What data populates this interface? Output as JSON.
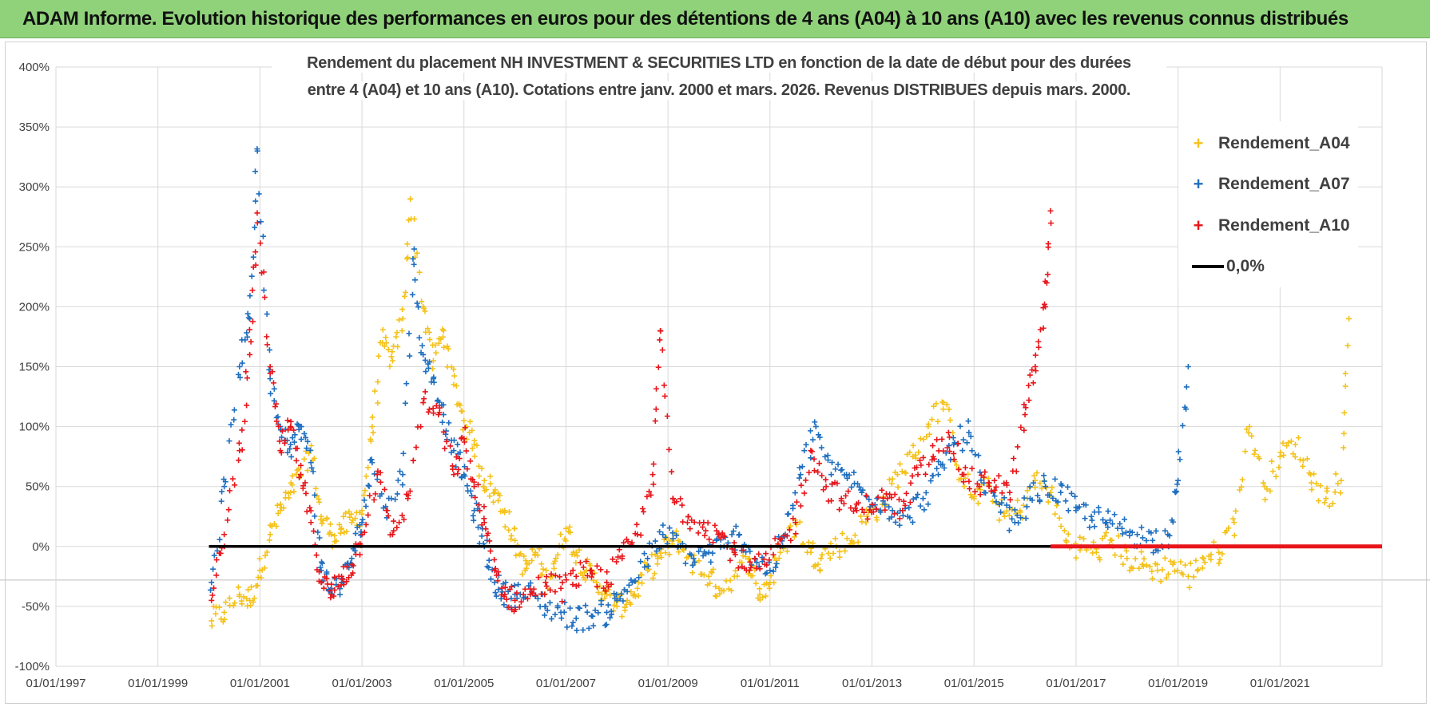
{
  "banner": {
    "title": "ADAM Informe. Evolution historique des performances en euros pour des détentions de 4 ans (A04) à 10 ans (A10) avec les revenus connus distribués"
  },
  "colors": {
    "banner_bg": "#8fd27a",
    "a04": "#f5c21b",
    "a07": "#1f6fc0",
    "a10": "#e8161b",
    "zero_line": "#000000",
    "grid": "#d9d9d9"
  },
  "chart_data": {
    "type": "scatter",
    "title_line1": "Rendement du placement NH INVESTMENT & SECURITIES LTD en fonction de la date de début pour des durées",
    "title_line2": "entre 4 (A04) et 10 ans (A10). Cotations entre janv. 2000 et mars. 2026. Revenus DISTRIBUES depuis mars. 2000.",
    "x_axis": {
      "type": "date",
      "ticks": [
        "01/01/1997",
        "01/01/1999",
        "01/01/2001",
        "01/01/2003",
        "01/01/2005",
        "01/01/2007",
        "01/01/2009",
        "01/01/2011",
        "01/01/2013",
        "01/01/2015",
        "01/01/2017",
        "01/01/2019",
        "01/01/2021"
      ],
      "range_years": [
        1997.0,
        2023.0
      ]
    },
    "y_axis": {
      "ticks": [
        "400%",
        "350%",
        "300%",
        "250%",
        "200%",
        "150%",
        "100%",
        "50%",
        "0%",
        "-50%",
        "-100%"
      ],
      "range": [
        -100,
        400
      ],
      "grid": true
    },
    "legend": [
      {
        "name": "Rendement_A04",
        "marker": "+"
      },
      {
        "name": "Rendement_A07",
        "marker": "+"
      },
      {
        "name": "Rendement_A10",
        "marker": "+"
      },
      {
        "name": "0,0%",
        "marker": "line"
      }
    ],
    "series": [
      {
        "name": "Rendement_A04",
        "x": [
          2000.05,
          2000.3,
          2000.6,
          2000.8,
          2001.0,
          2001.2,
          2001.4,
          2001.6,
          2001.8,
          2002.0,
          2002.2,
          2002.4,
          2002.6,
          2002.8,
          2003.0,
          2003.2,
          2003.4,
          2003.6,
          2003.8,
          2003.95,
          2004.2,
          2004.4,
          2004.6,
          2004.8,
          2005.0,
          2005.2,
          2005.4,
          2005.6,
          2005.8,
          2006.0,
          2006.2,
          2006.4,
          2006.6,
          2006.8,
          2007.0,
          2007.2,
          2007.4,
          2007.6,
          2007.8,
          2008.0,
          2008.2,
          2008.4,
          2008.6,
          2008.8,
          2009.0,
          2009.2,
          2009.5,
          2009.8,
          2010.0,
          2010.3,
          2010.6,
          2010.8,
          2011.0,
          2011.2,
          2011.5,
          2011.8,
          2012.0,
          2012.3,
          2012.6,
          2012.9,
          2013.2,
          2013.5,
          2013.8,
          2014.1,
          2014.4,
          2014.7,
          2015.0,
          2015.3,
          2015.6,
          2015.9,
          2016.2,
          2016.5,
          2016.8,
          2017.1,
          2017.4,
          2017.7,
          2018.0,
          2018.3,
          2018.6,
          2018.9,
          2019.2,
          2019.5,
          2019.8,
          2020.1,
          2020.4,
          2020.7,
          2021.0,
          2021.3,
          2021.6,
          2021.9,
          2022.2,
          2022.35
        ],
        "y": [
          -62,
          -55,
          -40,
          -45,
          -20,
          10,
          30,
          45,
          60,
          80,
          25,
          10,
          15,
          20,
          30,
          100,
          170,
          155,
          190,
          290,
          200,
          155,
          180,
          135,
          105,
          85,
          55,
          45,
          30,
          5,
          -20,
          -5,
          -30,
          -10,
          15,
          -5,
          -20,
          -30,
          -40,
          -50,
          -45,
          -35,
          -20,
          -10,
          0,
          5,
          -15,
          -25,
          -35,
          -25,
          -10,
          -40,
          -30,
          -5,
          20,
          -5,
          -10,
          0,
          5,
          25,
          35,
          60,
          75,
          100,
          120,
          65,
          40,
          50,
          25,
          30,
          55,
          45,
          5,
          0,
          -5,
          5,
          -10,
          -15,
          -20,
          -15,
          -25,
          -10,
          -5,
          20,
          100,
          50,
          75,
          85,
          60,
          40,
          55,
          190
        ]
      },
      {
        "name": "Rendement_A07",
        "x": [
          2000.05,
          2000.3,
          2000.6,
          2000.8,
          2000.95,
          2001.2,
          2001.4,
          2001.6,
          2001.8,
          2002.0,
          2002.2,
          2002.4,
          2002.6,
          2002.8,
          2003.0,
          2003.2,
          2003.5,
          2003.8,
          2004.0,
          2004.2,
          2004.4,
          2004.6,
          2004.8,
          2005.0,
          2005.2,
          2005.4,
          2005.6,
          2005.8,
          2006.0,
          2006.3,
          2006.6,
          2006.9,
          2007.2,
          2007.5,
          2007.8,
          2008.0,
          2008.3,
          2008.6,
          2008.9,
          2009.2,
          2009.5,
          2009.8,
          2010.1,
          2010.4,
          2010.7,
          2011.0,
          2011.3,
          2011.6,
          2011.9,
          2012.2,
          2012.5,
          2012.8,
          2013.1,
          2013.4,
          2013.7,
          2014.0,
          2014.3,
          2014.6,
          2014.9,
          2015.2,
          2015.5,
          2015.8,
          2016.1,
          2016.4,
          2016.7,
          2017.0,
          2017.3,
          2017.6,
          2017.9,
          2018.2,
          2018.5,
          2018.8,
          2019.0,
          2019.2
        ],
        "y": [
          -30,
          50,
          150,
          190,
          330,
          140,
          100,
          85,
          100,
          70,
          -20,
          -35,
          -30,
          -10,
          20,
          70,
          30,
          60,
          240,
          160,
          140,
          110,
          80,
          60,
          30,
          0,
          -30,
          -40,
          -40,
          -40,
          -50,
          -55,
          -60,
          -58,
          -55,
          -45,
          -30,
          -10,
          10,
          0,
          -10,
          -5,
          0,
          10,
          -10,
          -20,
          10,
          60,
          100,
          60,
          60,
          45,
          40,
          30,
          25,
          40,
          60,
          85,
          95,
          45,
          35,
          20,
          40,
          50,
          45,
          30,
          25,
          20,
          15,
          10,
          5,
          10,
          55,
          150
        ]
      },
      {
        "name": "Rendement_A10",
        "x": [
          2000.05,
          2000.3,
          2000.6,
          2000.8,
          2000.95,
          2001.2,
          2001.4,
          2001.6,
          2001.8,
          2002.0,
          2002.2,
          2002.4,
          2002.6,
          2002.8,
          2003.0,
          2003.3,
          2003.6,
          2003.9,
          2004.2,
          2004.5,
          2004.8,
          2005.0,
          2005.2,
          2005.4,
          2005.6,
          2005.8,
          2006.0,
          2006.3,
          2006.6,
          2006.9,
          2007.2,
          2007.5,
          2007.8,
          2008.1,
          2008.4,
          2008.7,
          2008.85,
          2009.1,
          2009.4,
          2009.7,
          2010.0,
          2010.3,
          2010.6,
          2010.9,
          2011.2,
          2011.5,
          2011.8,
          2012.1,
          2012.4,
          2012.7,
          2013.0,
          2013.3,
          2013.6,
          2013.9,
          2014.2,
          2014.5,
          2014.8,
          2015.1,
          2015.4,
          2015.7,
          2016.0,
          2016.2,
          2016.4,
          2016.5
        ],
        "y": [
          -45,
          10,
          80,
          160,
          270,
          150,
          80,
          100,
          60,
          20,
          -30,
          -40,
          -25,
          -15,
          10,
          60,
          10,
          40,
          120,
          110,
          60,
          90,
          50,
          20,
          -20,
          -40,
          -45,
          -40,
          -30,
          -35,
          -25,
          -20,
          -30,
          -10,
          10,
          60,
          180,
          40,
          25,
          20,
          10,
          -5,
          -20,
          -15,
          0,
          20,
          80,
          50,
          40,
          30,
          35,
          40,
          30,
          60,
          75,
          95,
          60,
          50,
          55,
          45,
          110,
          150,
          200,
          280
        ]
      },
      {
        "name": "0,0%",
        "type": "line",
        "x_range": [
          2000.0,
          2016.5
        ],
        "y": 0
      }
    ],
    "red_zero_band": {
      "series": "Rendement_A10",
      "x_range": [
        2016.5,
        2023.0
      ],
      "y": 0
    }
  }
}
